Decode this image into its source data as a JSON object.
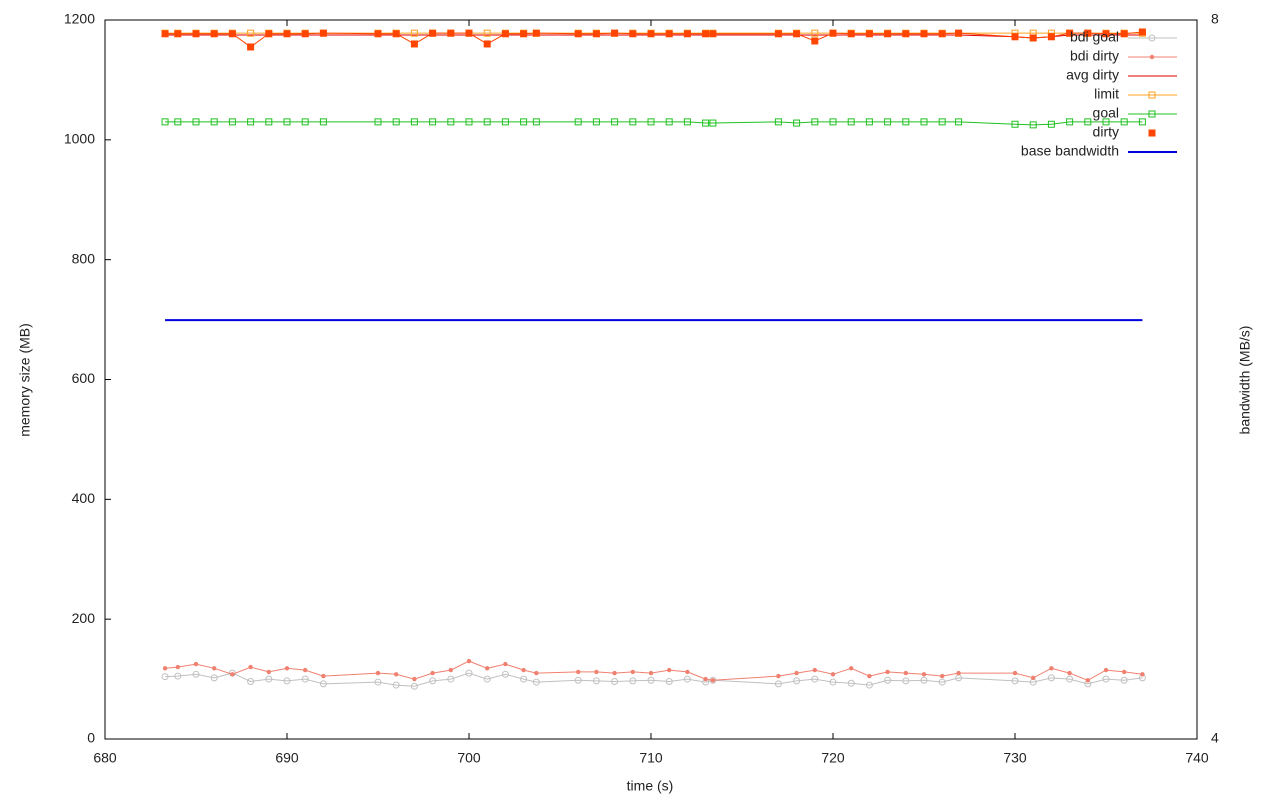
{
  "chart_data": {
    "type": "line",
    "xlabel": "time (s)",
    "ylabel": "memory size (MB)",
    "y2label": "bandwidth (MB/s)",
    "xlim": [
      680,
      740
    ],
    "xticks": [
      680,
      690,
      700,
      710,
      720,
      730,
      740
    ],
    "ylim": [
      0,
      1200
    ],
    "yticks": [
      0,
      200,
      400,
      600,
      800,
      1000,
      1200
    ],
    "y2lim": [
      4,
      8
    ],
    "y2ticks": [
      4,
      8
    ],
    "legend": "top-right",
    "x": [
      683.3,
      684,
      685,
      686,
      687,
      688,
      689,
      690,
      691,
      692,
      695,
      696,
      697,
      698,
      699,
      700,
      701,
      702,
      703,
      703.7,
      706,
      707,
      708,
      709,
      710,
      711,
      712,
      713,
      713.4,
      717,
      718,
      719,
      720,
      721,
      722,
      723,
      724,
      725,
      726,
      726.9,
      730,
      731,
      732,
      733,
      734,
      735,
      736,
      737
    ],
    "series": [
      {
        "name": "bdi goal",
        "color": "#c0c0c0",
        "marker": "circle-open",
        "values": [
          104,
          105,
          108,
          102,
          110,
          96,
          100,
          97,
          100,
          92,
          95,
          90,
          88,
          97,
          100,
          110,
          100,
          108,
          100,
          95,
          98,
          97,
          96,
          97,
          98,
          96,
          100,
          95,
          98,
          92,
          97,
          100,
          95,
          93,
          90,
          98,
          97,
          98,
          95,
          102,
          97,
          95,
          102,
          100,
          92,
          100,
          98,
          102
        ]
      },
      {
        "name": "bdi dirty",
        "color": "#f08070",
        "marker": "dot",
        "values": [
          118,
          120,
          125,
          118,
          108,
          120,
          112,
          118,
          115,
          105,
          110,
          108,
          100,
          110,
          115,
          130,
          118,
          125,
          115,
          110,
          112,
          112,
          110,
          112,
          110,
          115,
          112,
          100,
          98,
          105,
          110,
          115,
          108,
          118,
          105,
          112,
          110,
          108,
          105,
          110,
          110,
          102,
          118,
          110,
          98,
          115,
          112,
          108
        ]
      },
      {
        "name": "avg dirty",
        "color": "#e00000",
        "marker": "none",
        "values": [
          1175,
          1175,
          1175,
          1175,
          1175,
          1175,
          1175,
          1175,
          1175,
          1175,
          1175,
          1175,
          1175,
          1175,
          1175,
          1175,
          1175,
          1175,
          1175,
          1175,
          1175,
          1175,
          1175,
          1175,
          1175,
          1175,
          1175,
          1175,
          1175,
          1175,
          1175,
          1175,
          1175,
          1175,
          1175,
          1175,
          1175,
          1175,
          1175,
          1175,
          1172,
          1170,
          1172,
          1175,
          1175,
          1175,
          1175,
          1175
        ]
      },
      {
        "name": "limit",
        "color": "#ffa020",
        "marker": "square-open",
        "values": [
          1178,
          1178,
          1178,
          1178,
          1178,
          1178,
          1178,
          1178,
          1178,
          1178,
          1178,
          1178,
          1178,
          1178,
          1178,
          1178,
          1178,
          1178,
          1178,
          1178,
          1178,
          1178,
          1178,
          1178,
          1178,
          1178,
          1178,
          1178,
          1178,
          1178,
          1178,
          1178,
          1178,
          1178,
          1178,
          1178,
          1178,
          1178,
          1178,
          1178,
          1178,
          1178,
          1178,
          1178,
          1178,
          1178,
          1178,
          1178
        ]
      },
      {
        "name": "goal",
        "color": "#20c020",
        "marker": "square-open",
        "values": [
          1030,
          1030,
          1030,
          1030,
          1030,
          1030,
          1030,
          1030,
          1030,
          1030,
          1030,
          1030,
          1030,
          1030,
          1030,
          1030,
          1030,
          1030,
          1030,
          1030,
          1030,
          1030,
          1030,
          1030,
          1030,
          1030,
          1030,
          1028,
          1028,
          1030,
          1028,
          1030,
          1030,
          1030,
          1030,
          1030,
          1030,
          1030,
          1030,
          1030,
          1026,
          1025,
          1026,
          1030,
          1030,
          1030,
          1030,
          1030
        ]
      },
      {
        "name": "dirty",
        "color": "#ff4500",
        "marker": "square",
        "values": [
          1177,
          1177,
          1177,
          1177,
          1177,
          1155,
          1177,
          1177,
          1177,
          1178,
          1177,
          1177,
          1160,
          1178,
          1178,
          1178,
          1160,
          1177,
          1177,
          1178,
          1177,
          1177,
          1178,
          1177,
          1177,
          1177,
          1177,
          1177,
          1177,
          1177,
          1177,
          1165,
          1178,
          1177,
          1177,
          1177,
          1177,
          1177,
          1177,
          1178,
          1172,
          1170,
          1172,
          1178,
          1178,
          1177,
          1177,
          1180
        ]
      },
      {
        "name": "base bandwidth",
        "color": "#0000e0",
        "marker": "none",
        "axis": "y2",
        "width": 2,
        "values": [
          6.33,
          6.33,
          6.33,
          6.33,
          6.33,
          6.33,
          6.33,
          6.33,
          6.33,
          6.33,
          6.33,
          6.33,
          6.33,
          6.33,
          6.33,
          6.33,
          6.33,
          6.33,
          6.33,
          6.33,
          6.33,
          6.33,
          6.33,
          6.33,
          6.33,
          6.33,
          6.33,
          6.33,
          6.33,
          6.33,
          6.33,
          6.33,
          6.33,
          6.33,
          6.33,
          6.33,
          6.33,
          6.33,
          6.33,
          6.33,
          6.33,
          6.33,
          6.33,
          6.33,
          6.33,
          6.33,
          6.33,
          6.33
        ]
      }
    ]
  }
}
